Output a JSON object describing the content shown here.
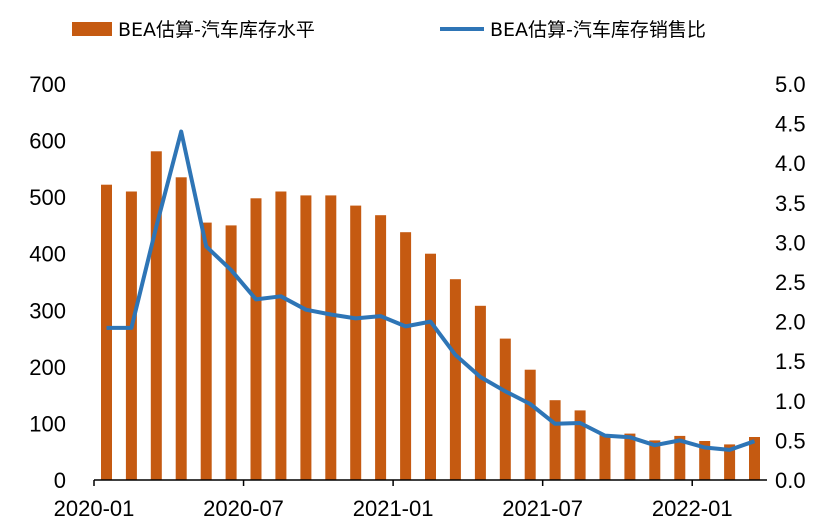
{
  "colors": {
    "bar": "#C55A11",
    "line": "#2E75B6"
  },
  "chart_data": {
    "type": "bar",
    "legend": {
      "bar_label": "BEA估算-汽车库存水平",
      "line_label": "BEA估算-汽车库存销售比",
      "placement": "top"
    },
    "x": [
      "2020-01",
      "2020-02",
      "2020-03",
      "2020-04",
      "2020-05",
      "2020-06",
      "2020-07",
      "2020-08",
      "2020-09",
      "2020-10",
      "2020-11",
      "2020-12",
      "2021-01",
      "2021-02",
      "2021-03",
      "2021-04",
      "2021-05",
      "2021-06",
      "2021-07",
      "2021-08",
      "2021-09",
      "2021-10",
      "2021-11",
      "2021-12",
      "2022-01",
      "2022-02",
      "2022-03"
    ],
    "x_tick_labels": [
      "2020-01",
      "2020-07",
      "2021-01",
      "2021-07",
      "2022-01"
    ],
    "series": [
      {
        "name": "BEA估算-汽车库存水平",
        "type": "bar",
        "axis": "left",
        "values": [
          522,
          510,
          581,
          535,
          455,
          450,
          498,
          510,
          503,
          503,
          485,
          468,
          438,
          400,
          355,
          308,
          250,
          195,
          141,
          123,
          80,
          82,
          70,
          78,
          69,
          63,
          76
        ]
      },
      {
        "name": "BEA估算-汽车库存销售比",
        "type": "line",
        "axis": "right",
        "values": [
          1.92,
          1.92,
          3.2,
          4.4,
          2.95,
          2.65,
          2.28,
          2.32,
          2.15,
          2.09,
          2.04,
          2.07,
          1.94,
          2.0,
          1.58,
          1.3,
          1.12,
          0.96,
          0.71,
          0.72,
          0.56,
          0.54,
          0.44,
          0.5,
          0.41,
          0.38,
          0.49
        ]
      }
    ],
    "y_left": {
      "ylim": [
        0,
        700
      ],
      "ticks": [
        "0",
        "100",
        "200",
        "300",
        "400",
        "500",
        "600",
        "700"
      ]
    },
    "y_right": {
      "ylim": [
        0,
        5
      ],
      "ticks": [
        "0.0",
        "0.5",
        "1.0",
        "1.5",
        "2.0",
        "2.5",
        "3.0",
        "3.5",
        "4.0",
        "4.5",
        "5.0"
      ]
    },
    "grid": false
  }
}
